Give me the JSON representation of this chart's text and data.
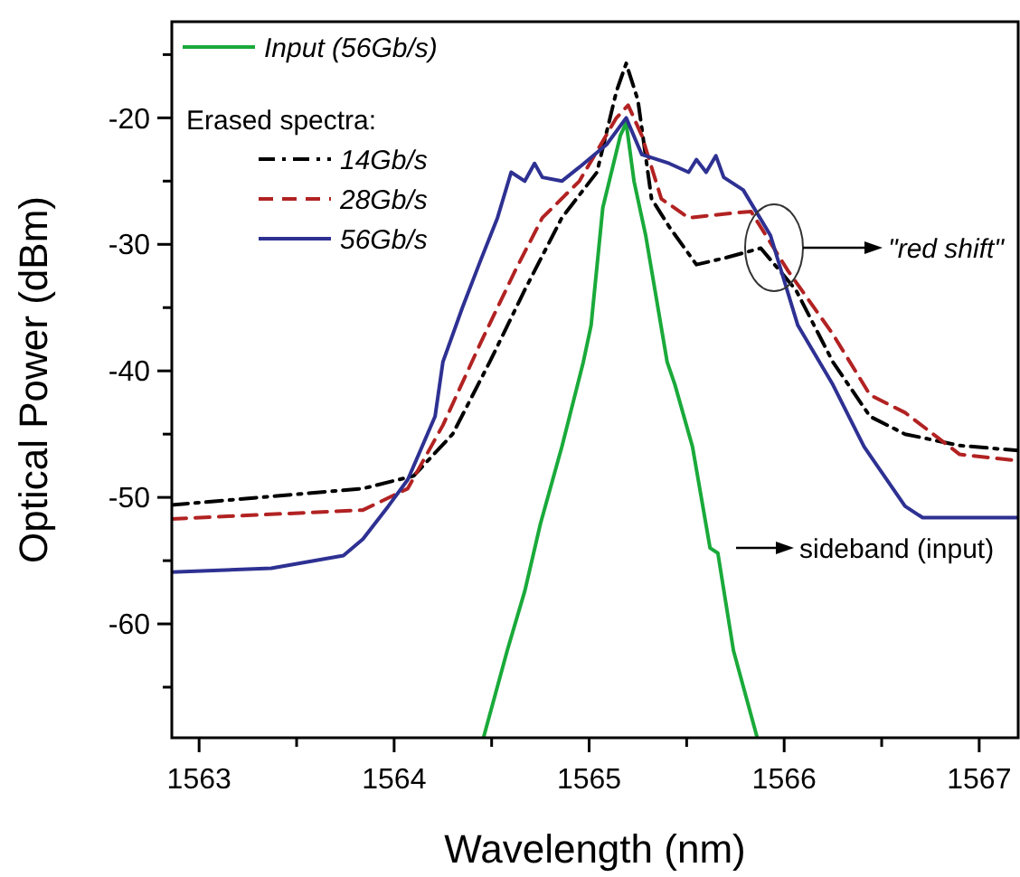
{
  "chart_data": {
    "type": "line",
    "xlabel": "Wavelength (nm)",
    "ylabel": "Optical Power (dBm)",
    "legend_title": "Erased spectra:",
    "legend": "top left",
    "grid": false,
    "xlim": [
      1562.86,
      1567.2
    ],
    "ylim": [
      -69,
      -12.4
    ],
    "xticks": [
      1563,
      {
        "value": 1563.5,
        "label": null
      },
      1564,
      {
        "value": 1564.5,
        "label": null
      },
      1565,
      {
        "value": 1565.5,
        "label": null
      },
      1566,
      {
        "value": 1566.5,
        "label": null
      },
      1567
    ],
    "yticks": [
      {
        "value": -65,
        "label": null
      },
      -60,
      {
        "value": -55,
        "label": null
      },
      -50,
      {
        "value": -45,
        "label": null
      },
      -40,
      {
        "value": -35,
        "label": null
      },
      -30,
      {
        "value": -25,
        "label": null
      },
      -20,
      {
        "value": -15,
        "label": null
      }
    ],
    "series": [
      {
        "name": "Input (56Gb/s)",
        "color": "#1aaa3a",
        "line_style": "solid",
        "x": [
          1564.46,
          1564.58,
          1564.67,
          1564.75,
          1564.86,
          1564.97,
          1565.01,
          1565.07,
          1565.16,
          1565.19,
          1565.23,
          1565.29,
          1565.4,
          1565.44,
          1565.53,
          1565.62,
          1565.66,
          1565.74,
          1565.86
        ],
        "values": [
          -68.9,
          -62.1,
          -57.4,
          -52.1,
          -46,
          -39.3,
          -36.4,
          -27.1,
          -21.4,
          -20.4,
          -25,
          -29.3,
          -39.3,
          -41.1,
          -46,
          -54,
          -54.4,
          -62.1,
          -68.9
        ]
      },
      {
        "name": "14Gb/s",
        "color": "#000000",
        "line_style": "dashdot",
        "x": [
          1562.86,
          1563.84,
          1564.1,
          1564.3,
          1564.49,
          1564.67,
          1564.86,
          1565.04,
          1565.14,
          1565.19,
          1565.25,
          1565.32,
          1565.41,
          1565.55,
          1565.69,
          1565.88,
          1566.06,
          1566.25,
          1566.44,
          1566.62,
          1566.9,
          1567.2
        ],
        "values": [
          -50.6,
          -49.3,
          -48.3,
          -45,
          -39.3,
          -33.6,
          -27.9,
          -24.3,
          -17.9,
          -15.7,
          -18.6,
          -26.4,
          -28.6,
          -31.6,
          -31.1,
          -30.3,
          -33.6,
          -39.3,
          -43.6,
          -45,
          -45.9,
          -46.3
        ]
      },
      {
        "name": "28Gb/s",
        "color": "#b22222",
        "line_style": "dashed",
        "x": [
          1562.86,
          1563.84,
          1564.07,
          1564.25,
          1564.44,
          1564.62,
          1564.76,
          1564.95,
          1565.14,
          1565.2,
          1565.27,
          1565.37,
          1565.51,
          1565.69,
          1565.83,
          1566.02,
          1566.25,
          1566.44,
          1566.62,
          1566.9,
          1567.2
        ],
        "values": [
          -51.7,
          -51,
          -49.3,
          -44.3,
          -37.9,
          -32.1,
          -27.9,
          -25,
          -20,
          -19,
          -21.4,
          -26.4,
          -27.9,
          -27.6,
          -27.4,
          -32.1,
          -37.1,
          -41.9,
          -43.3,
          -46.6,
          -47.1
        ]
      },
      {
        "name": "56Gb/s",
        "color": "#2e3192",
        "line_style": "solid",
        "x": [
          1562.86,
          1563.37,
          1563.74,
          1563.84,
          1563.97,
          1564.07,
          1564.21,
          1564.25,
          1564.35,
          1564.44,
          1564.53,
          1564.6,
          1564.67,
          1564.72,
          1564.76,
          1564.86,
          1564.95,
          1565.09,
          1565.19,
          1565.27,
          1565.41,
          1565.51,
          1565.55,
          1565.6,
          1565.65,
          1565.69,
          1565.79,
          1565.93,
          1566.07,
          1566.25,
          1566.41,
          1566.62,
          1566.71,
          1567.2
        ],
        "values": [
          -55.9,
          -55.6,
          -54.6,
          -53.3,
          -50.7,
          -48.6,
          -43.6,
          -39.3,
          -35,
          -31.4,
          -27.9,
          -24.3,
          -25,
          -23.6,
          -24.7,
          -25,
          -23.9,
          -22.1,
          -20,
          -22.9,
          -23.6,
          -24.3,
          -23.3,
          -24.3,
          -23,
          -24.7,
          -25.7,
          -29.3,
          -36.4,
          -41.1,
          -46,
          -50.7,
          -51.6,
          -51.6
        ]
      }
    ],
    "annotations": [
      "\"red shift\"",
      "sideband (input)"
    ]
  }
}
